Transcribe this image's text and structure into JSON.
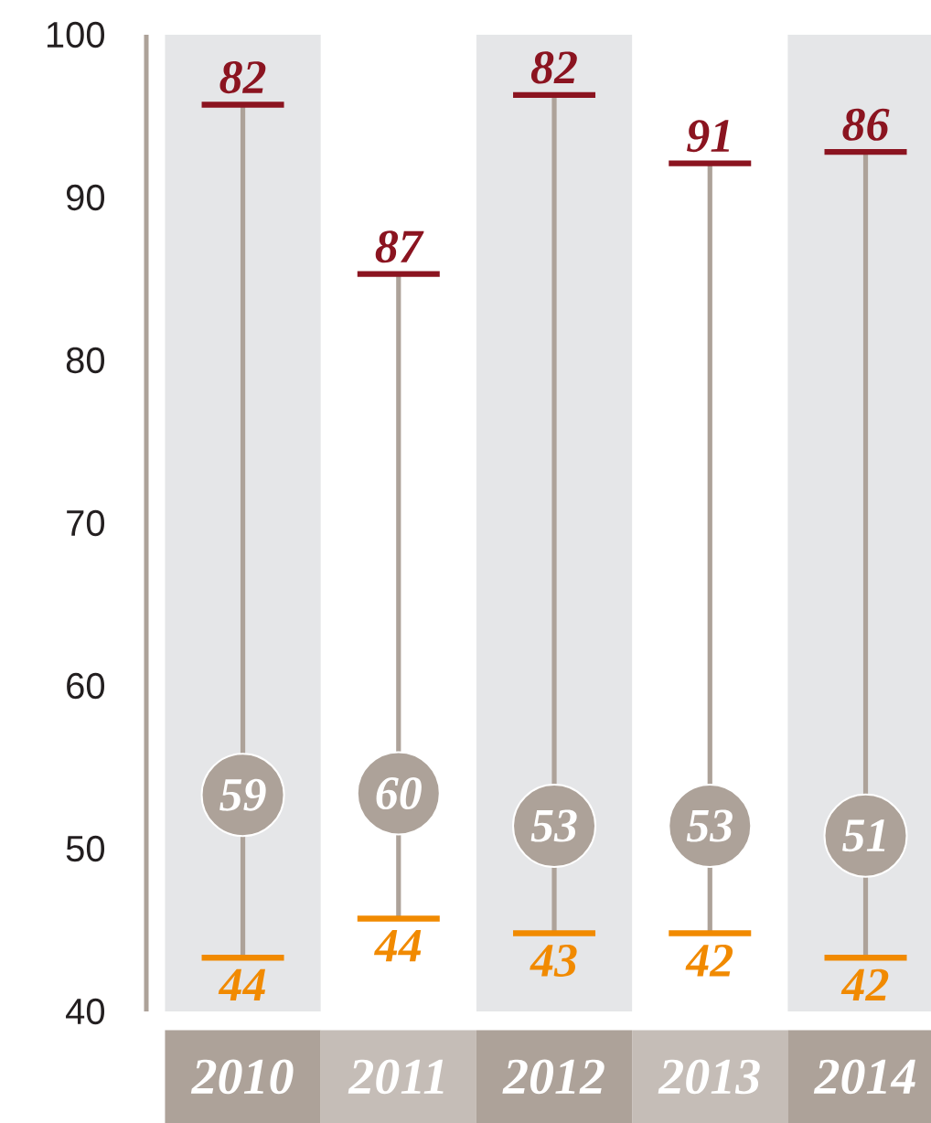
{
  "chart_data": {
    "type": "scatter",
    "categories": [
      "2010",
      "2011",
      "2012",
      "2013",
      "2014"
    ],
    "ylim": [
      40,
      100
    ],
    "yticks": [
      40,
      50,
      60,
      70,
      80,
      90,
      100
    ],
    "series": [
      {
        "type": "bar",
        "color": "#ada299",
        "base": [
          43.3,
          45.7,
          44.8,
          44.8,
          43.3
        ],
        "values": [
          52.4,
          39.6,
          51.5,
          47.3,
          49.5
        ]
      },
      {
        "color": "#ada299",
        "marker": "circle",
        "values": [
          53.3,
          53.4,
          51.4,
          51.4,
          50.8
        ]
      }
    ],
    "bands": [
      {
        "axis": "x",
        "from": "2010",
        "to": "2010",
        "color": "#e5e6e8"
      },
      {
        "axis": "x",
        "from": "2012",
        "to": "2012",
        "color": "#e5e6e8"
      },
      {
        "axis": "x",
        "from": "2014",
        "to": "2014",
        "color": "#e5e6e8"
      }
    ],
    "annotations": [
      {
        "text": "82",
        "x": "2010",
        "y": 95.7
      },
      {
        "text": "87",
        "x": "2011",
        "y": 85.3
      },
      {
        "text": "82",
        "x": "2012",
        "y": 96.3
      },
      {
        "text": "91",
        "x": "2013",
        "y": 92.1
      },
      {
        "text": "86",
        "x": "2014",
        "y": 92.8
      },
      {
        "text": "59",
        "x": "2010",
        "y": 53.3
      },
      {
        "text": "60",
        "x": "2011",
        "y": 53.4
      },
      {
        "text": "53",
        "x": "2012",
        "y": 51.4
      },
      {
        "text": "53",
        "x": "2013",
        "y": 51.4
      },
      {
        "text": "51",
        "x": "2014",
        "y": 50.8
      },
      {
        "text": "44",
        "x": "2010",
        "y": 43.3
      },
      {
        "text": "44",
        "x": "2011",
        "y": 45.7
      },
      {
        "text": "43",
        "x": "2012",
        "y": 44.8
      },
      {
        "text": "42",
        "x": "2013",
        "y": 44.8
      },
      {
        "text": "42",
        "x": "2014",
        "y": 43.3
      }
    ]
  }
}
